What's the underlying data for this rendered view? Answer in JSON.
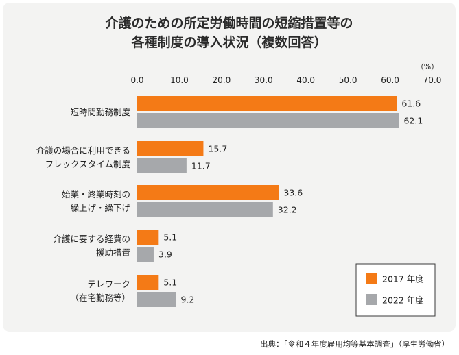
{
  "chart_data": {
    "type": "bar",
    "orientation": "horizontal",
    "title_lines": [
      "介護のための所定労働時間の短縮措置等の",
      "各種制度の導入状況（複数回答）"
    ],
    "unit": "（%）",
    "xlim": [
      0,
      70
    ],
    "ticks": [
      "0.0",
      "10.0",
      "20.0",
      "30.0",
      "40.0",
      "50.0",
      "60.0",
      "70.0"
    ],
    "categories": [
      [
        "短時間勤務制度"
      ],
      [
        "介護の場合に利用できる",
        "フレックスタイム制度"
      ],
      [
        "始業・終業時刻の",
        "繰上げ・繰下げ"
      ],
      [
        "介護に要する経費の",
        "援助措置"
      ],
      [
        "テレワーク",
        "（在宅勤務等）"
      ]
    ],
    "series": [
      {
        "name": "2017 年度",
        "values": [
          61.6,
          15.7,
          33.6,
          5.1,
          5.1
        ],
        "labels": [
          "61.6",
          "15.7",
          "33.6",
          "5.1",
          "5.1"
        ]
      },
      {
        "name": "2022 年度",
        "values": [
          62.1,
          11.7,
          32.2,
          3.9,
          9.2
        ],
        "labels": [
          "62.1",
          "11.7",
          "32.2",
          "3.9",
          "9.2"
        ]
      }
    ],
    "legend_position": "bottom-right",
    "grid": false
  },
  "colors": {
    "series_2017": "#f47a16",
    "series_2022": "#a6a8ab",
    "panel": "#f3f3f2"
  },
  "source": "出典：「令和４年度雇用均等基本調査」（厚生労働省）"
}
